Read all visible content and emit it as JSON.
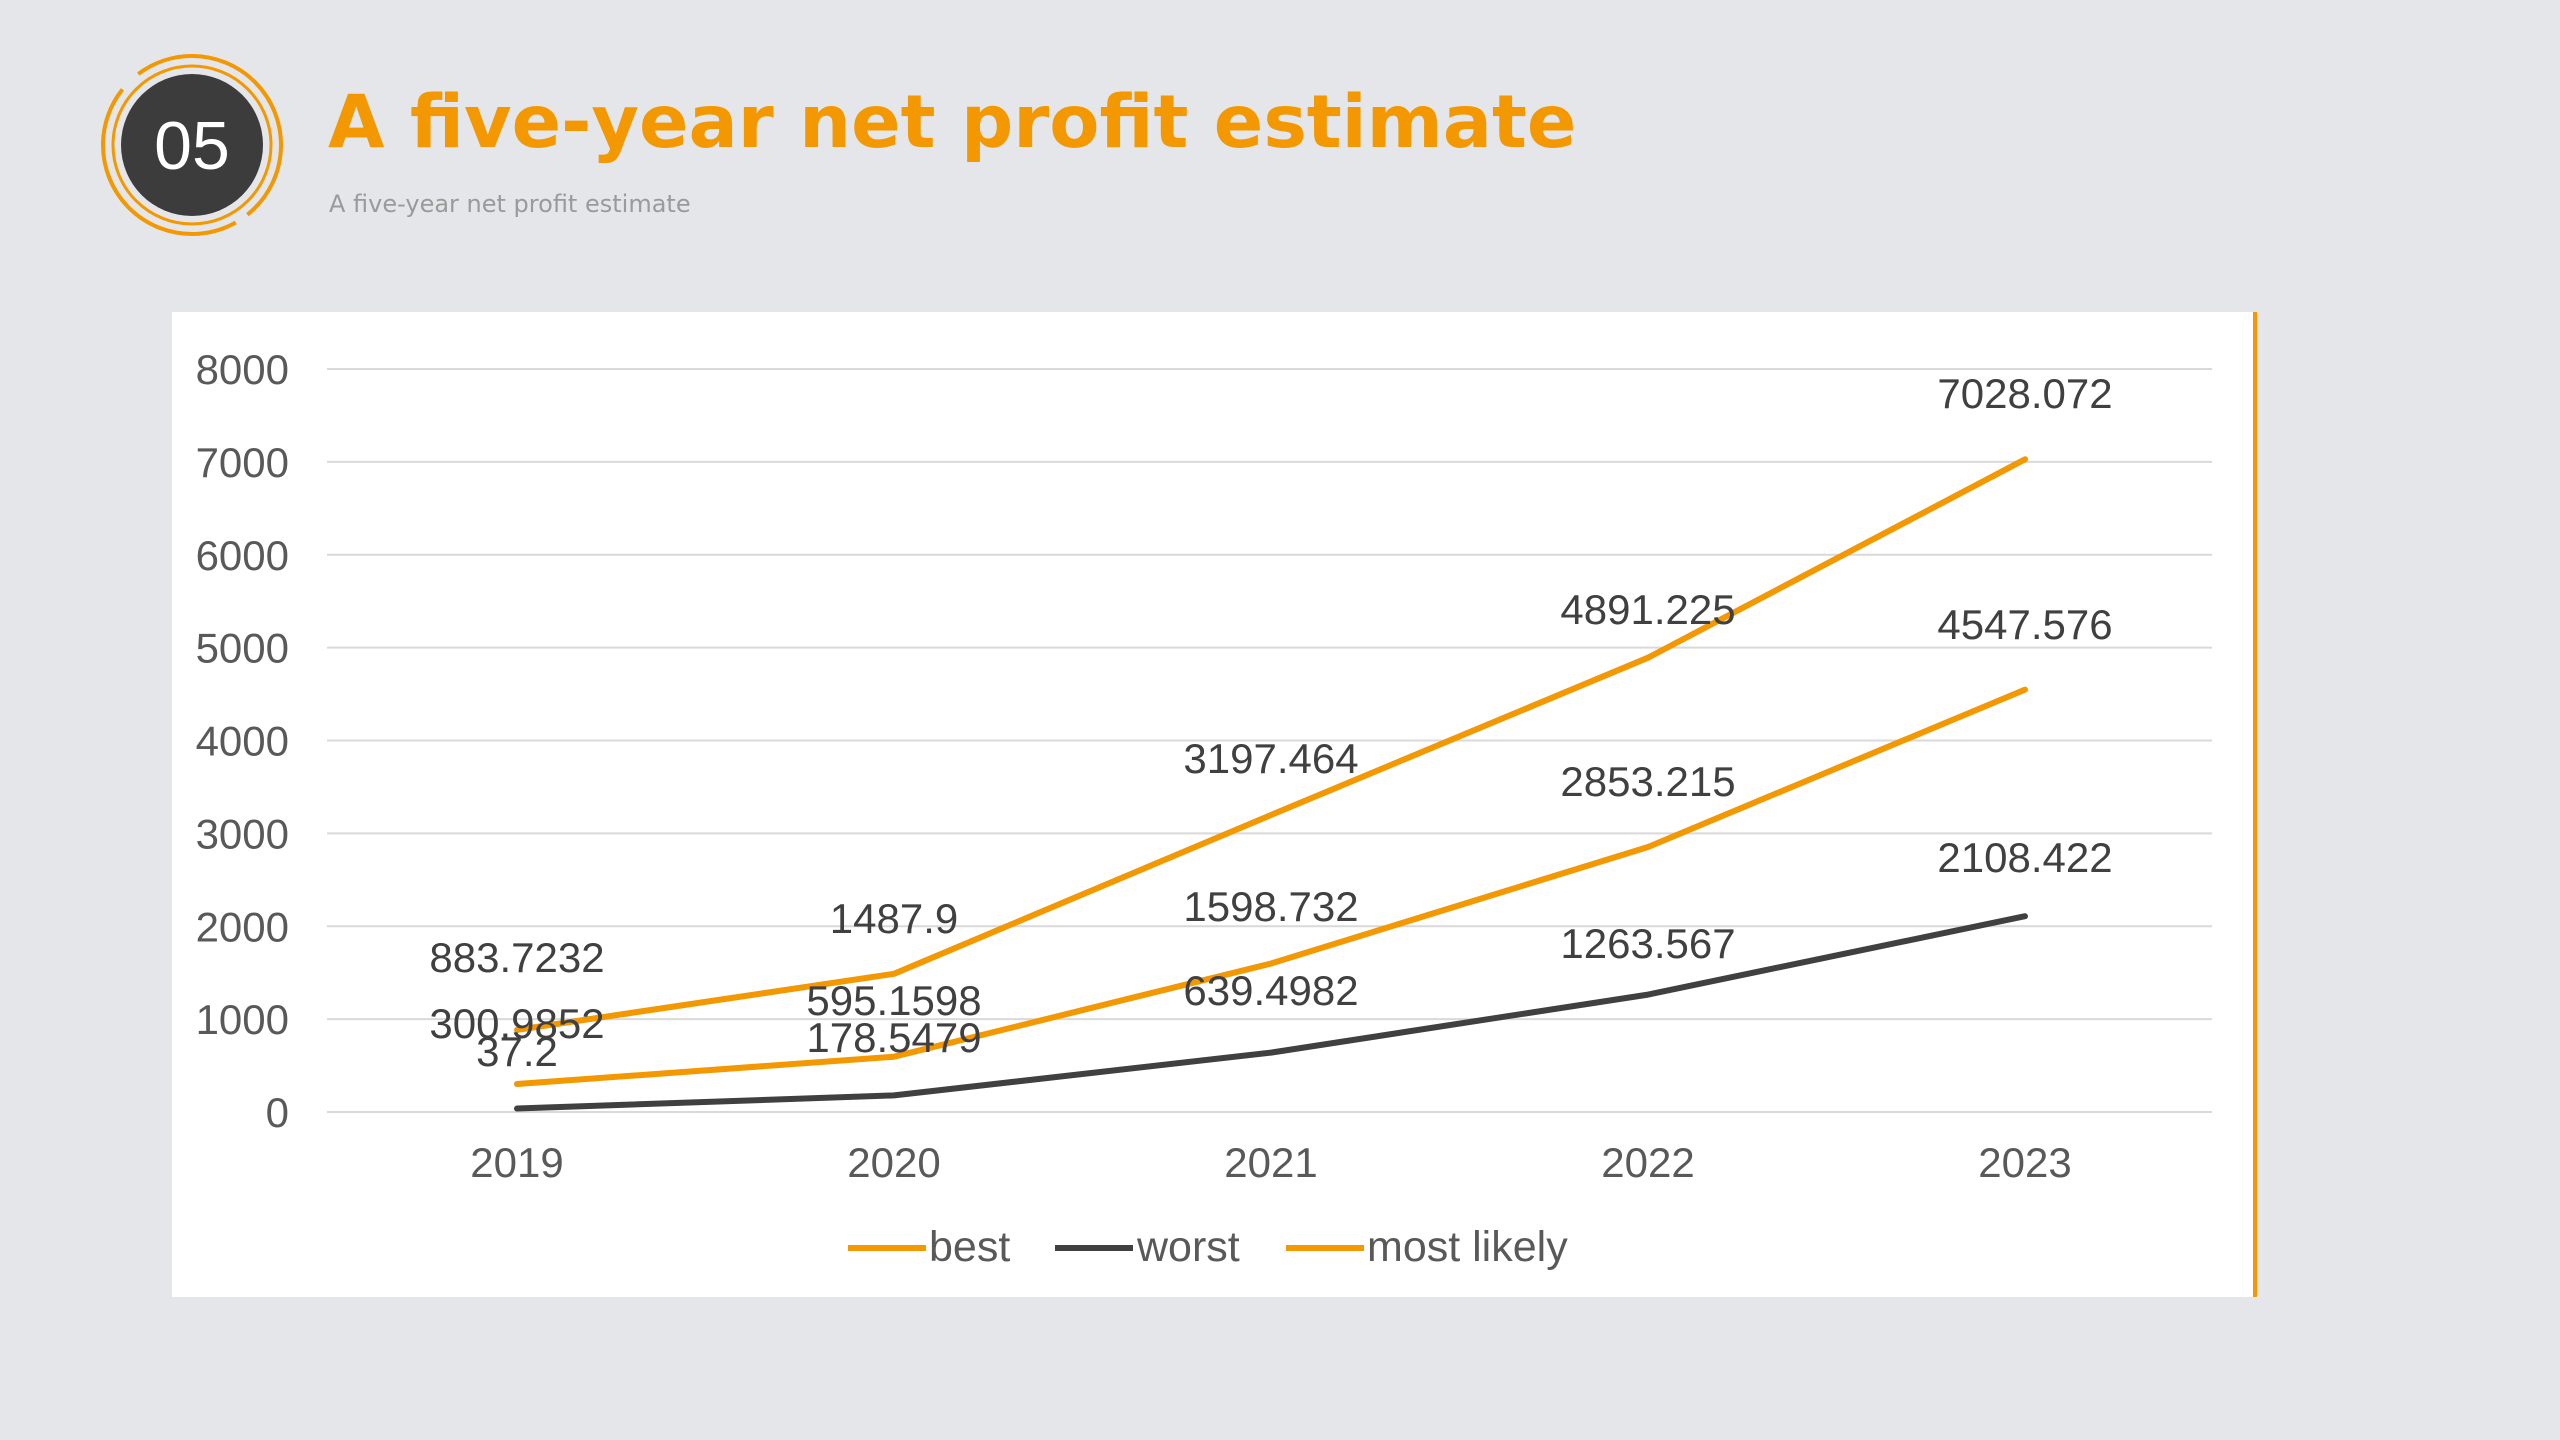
{
  "header": {
    "badge_number": "05",
    "title": "A five-year net profit estimate",
    "subtitle": "A five-year net profit estimate"
  },
  "colors": {
    "accent": "#f39800",
    "dark": "#404040",
    "background": "#e5e6e9",
    "grid": "#d9d9d9"
  },
  "chart_data": {
    "type": "line",
    "title": "",
    "xlabel": "",
    "ylabel": "",
    "categories": [
      "2019",
      "2020",
      "2021",
      "2022",
      "2023"
    ],
    "ylim": [
      0,
      8000
    ],
    "yticks": [
      0,
      1000,
      2000,
      3000,
      4000,
      5000,
      6000,
      7000,
      8000
    ],
    "grid": true,
    "legend_position": "bottom",
    "series": [
      {
        "name": "best",
        "color": "#f39800",
        "values": [
          883.7232,
          1487.9,
          3197.464,
          4891.225,
          7028.072
        ],
        "labels": [
          "883.7232",
          "1487.9",
          "3197.464",
          "4891.225",
          "7028.072"
        ]
      },
      {
        "name": "worst",
        "color": "#404040",
        "values": [
          37.2,
          178.5479,
          639.4982,
          1263.567,
          2108.422
        ],
        "labels": [
          "37.2",
          "178.5479",
          "639.4982",
          "1263.567",
          "2108.422"
        ]
      },
      {
        "name": "most likely",
        "color": "#f39800",
        "values": [
          300.9852,
          595.1598,
          1598.732,
          2853.215,
          4547.576
        ],
        "labels": [
          "300.9852",
          "595.1598",
          "1598.732",
          "2853.215",
          "4547.576"
        ]
      }
    ]
  }
}
